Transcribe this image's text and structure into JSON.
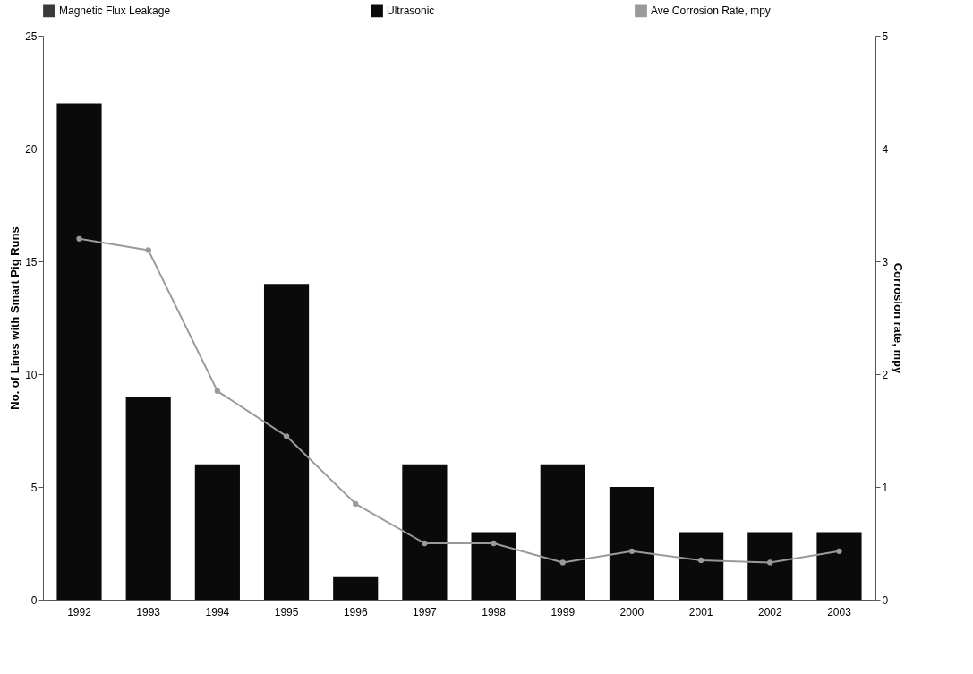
{
  "chart_data": {
    "type": "bar",
    "stacked": true,
    "categories": [
      "1992",
      "1993",
      "1994",
      "1995",
      "1996",
      "1997",
      "1998",
      "1999",
      "2000",
      "2001",
      "2002",
      "2003"
    ],
    "series": [
      {
        "name": "Magnetic Flux Leakage",
        "color": "#3a3a3a",
        "values": [
          null,
          null,
          null,
          null,
          null,
          null,
          null,
          null,
          null,
          null,
          null,
          null
        ]
      },
      {
        "name": "Ultrasonic",
        "color": "#0a0a0a",
        "values": [
          22,
          9,
          6,
          14,
          1,
          6,
          3,
          6,
          5,
          3,
          3,
          3
        ]
      },
      {
        "name": "Ave Corrosion Rate, mpy",
        "type": "line",
        "axis": "y2",
        "color": "#9a9a9a",
        "values": [
          3.2,
          3.1,
          1.85,
          1.45,
          0.85,
          0.5,
          0.5,
          0.33,
          0.43,
          0.35,
          0.33,
          0.43
        ]
      }
    ],
    "ylabel": "No. of Lines with Smart Pig Runs",
    "y2label": "Corrosion rate, mpy",
    "ylim": [
      0,
      25
    ],
    "yticks": [
      0,
      5,
      10,
      15,
      20,
      25
    ],
    "y2lim": [
      0,
      5
    ],
    "y2ticks": [
      0,
      1,
      2,
      3,
      4,
      5
    ],
    "legend": "top",
    "marker": "circle",
    "line_style": "solid",
    "grid": false
  }
}
